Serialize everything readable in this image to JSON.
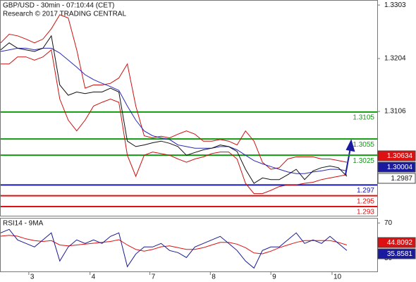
{
  "chart_data": [
    {
      "type": "line",
      "title": "GBP/USD - 30min - 07:10:44 (CET)",
      "subtitle": "Research © 2017 TRADING CENTRAL",
      "ylim": [
        1.2913,
        1.3311
      ],
      "yticks": [
        1.3303,
        1.3204,
        1.3106
      ],
      "xlim": [
        0,
        44.6
      ],
      "xticks": [
        {
          "value": 3.33,
          "label": "3"
        },
        {
          "value": 10.58,
          "label": "4"
        },
        {
          "value": 17.67,
          "label": "7"
        },
        {
          "value": 24.83,
          "label": "8"
        },
        {
          "value": 32,
          "label": "9"
        },
        {
          "value": 39.25,
          "label": "10"
        }
      ],
      "levels": [
        {
          "value": 1.3105,
          "color": "#119911"
        },
        {
          "value": 1.3055,
          "color": "#119911"
        },
        {
          "value": 1.3025,
          "color": "#119911"
        },
        {
          "value": 1.297,
          "color": "#1a1aa0"
        },
        {
          "value": 1.295,
          "color": "#dd1111"
        },
        {
          "value": 1.293,
          "color": "#dd1111"
        }
      ],
      "price_boxes": [
        {
          "value": 1.30634,
          "color": "#dd1111"
        },
        {
          "value": 1.30004,
          "color": "#1a1aa0"
        },
        {
          "value": 1.2987,
          "color": "#ffffff"
        }
      ],
      "series": [
        {
          "color": "#cc1111",
          "values": [
            1.3233,
            1.3249,
            1.3246,
            1.324,
            1.3233,
            1.324,
            1.3259,
            1.3285,
            1.3279,
            1.322,
            1.3149,
            1.3155,
            1.3155,
            1.3158,
            1.3168,
            1.3194,
            1.3116,
            1.3061,
            1.3057,
            1.306,
            1.3057,
            1.3064,
            1.307,
            1.3064,
            1.3051,
            1.3051,
            1.3054,
            1.3051,
            1.3044,
            1.307,
            1.3051,
            1.3012,
            1.2999,
            1.3002,
            1.3018,
            1.3022,
            1.3022,
            1.3022,
            1.3018,
            1.3018,
            1.3015,
            1.3012
          ]
        },
        {
          "color": "#cc1111",
          "values": [
            1.3194,
            1.3194,
            1.3207,
            1.3207,
            1.3201,
            1.3207,
            1.322,
            1.3129,
            1.309,
            1.307,
            1.309,
            1.3116,
            1.3123,
            1.3129,
            1.3123,
            1.3025,
            1.2986,
            1.3025,
            1.3031,
            1.3028,
            1.3025,
            1.3018,
            1.3012,
            1.3018,
            1.3022,
            1.3028,
            1.3031,
            1.3031,
            1.3018,
            1.2973,
            1.2954,
            1.2954,
            1.296,
            1.2967,
            1.297,
            1.297,
            1.2973,
            1.2975,
            1.298,
            1.2983,
            1.2986,
            1.2989
          ]
        },
        {
          "color": "#2a2ab8",
          "values": [
            1.3217,
            1.322,
            1.3223,
            1.3223,
            1.322,
            1.3223,
            1.3223,
            1.3214,
            1.3201,
            1.3188,
            1.3174,
            1.3165,
            1.3158,
            1.3152,
            1.3145,
            1.3116,
            1.309,
            1.307,
            1.3061,
            1.3057,
            1.3054,
            1.3044,
            1.3041,
            1.3038,
            1.3038,
            1.3038,
            1.3041,
            1.3041,
            1.3035,
            1.3025,
            1.3015,
            1.3009,
            1.3004,
            1.2999,
            1.2994,
            1.2991,
            1.2991,
            1.2994,
            1.2996,
            1.2999,
            1.2999,
            1.2996
          ]
        },
        {
          "color": "#111111",
          "values": [
            1.322,
            1.3233,
            1.3223,
            1.322,
            1.3217,
            1.3223,
            1.3246,
            1.3155,
            1.3136,
            1.3142,
            1.3139,
            1.3142,
            1.3142,
            1.3149,
            1.3142,
            1.3051,
            1.3041,
            1.3044,
            1.3048,
            1.3051,
            1.3047,
            1.3041,
            1.3025,
            1.303,
            1.3035,
            1.3038,
            1.3044,
            1.3041,
            1.3032,
            1.2999,
            1.2973,
            1.2983,
            1.298,
            1.298,
            1.2989,
            1.2999,
            1.298,
            1.2996,
            1.3002,
            1.3005,
            1.3002,
            1.2986
          ]
        }
      ]
    },
    {
      "type": "line",
      "title": "RSI14 - 9MA",
      "ylim": [
        15,
        75
      ],
      "yticks": [
        70,
        30
      ],
      "xlim": [
        0,
        44.6
      ],
      "value_boxes": [
        {
          "value": 44.8092,
          "color": "#dd1111"
        },
        {
          "value": 35.8581,
          "color": "#1a1aa0"
        }
      ],
      "series": [
        {
          "color": "#dd1111",
          "values": [
            55,
            56,
            55,
            52,
            50,
            49,
            50,
            45,
            44,
            45,
            46,
            47,
            48,
            49,
            51,
            45,
            40,
            38,
            40,
            43,
            44,
            42,
            40,
            40,
            42,
            45,
            48,
            48,
            46,
            42,
            36,
            35,
            38,
            42,
            45,
            48,
            50,
            50,
            50,
            50,
            48,
            45
          ]
        },
        {
          "color": "#1a1a90",
          "values": [
            58.8,
            62.8,
            50.8,
            46.8,
            42.8,
            50.8,
            58.8,
            26.8,
            42.8,
            50.8,
            46.8,
            50.8,
            46.8,
            54.8,
            58.8,
            20.4,
            34.8,
            42.8,
            42.8,
            46.8,
            38.8,
            36.4,
            30.8,
            42.8,
            46.8,
            50.8,
            54.8,
            46.8,
            38.8,
            26.8,
            18.8,
            38.8,
            42.8,
            42.8,
            50.8,
            58.8,
            46.8,
            50.8,
            46.8,
            54.8,
            46.8,
            38.8
          ]
        }
      ]
    }
  ]
}
